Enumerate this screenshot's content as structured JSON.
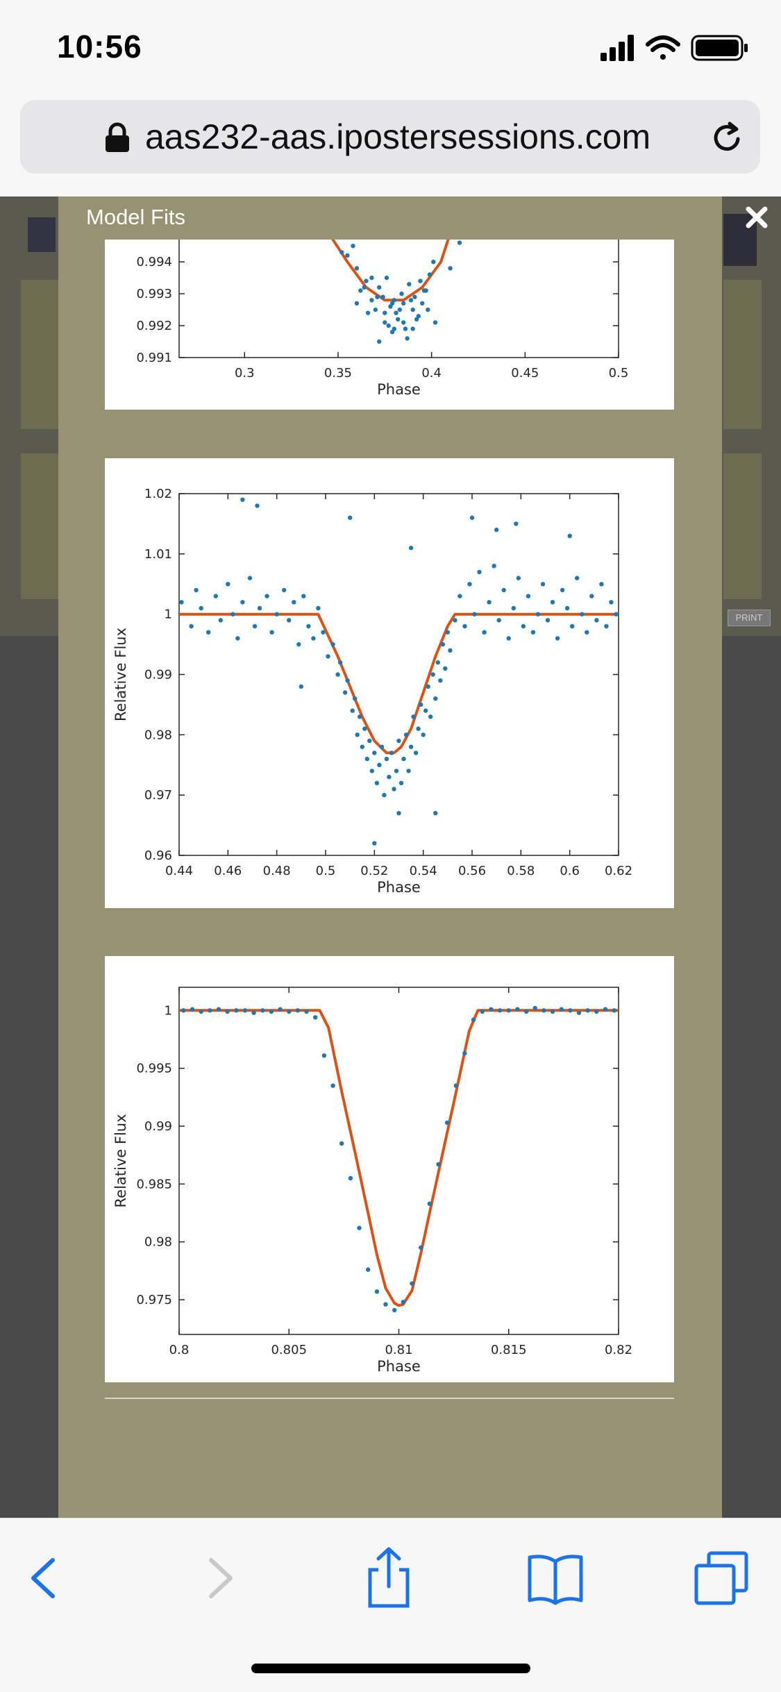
{
  "status_bar": {
    "time": "10:56"
  },
  "browser": {
    "url": "aas232-aas.ipostersessions.com"
  },
  "modal": {
    "title": "Model Fits"
  },
  "icons": {
    "signal": "signal-icon",
    "wifi": "wifi-icon",
    "battery": "battery-icon",
    "lock": "lock-icon",
    "reload": "reload-icon",
    "close": "close-icon",
    "back": "back-icon",
    "forward": "forward-icon",
    "share": "share-icon",
    "bookmarks": "bookmarks-icon",
    "tabs": "tabs-icon"
  },
  "colors": {
    "points": "#1f77b4",
    "model": "#d95319",
    "modal_bg": "#979274"
  },
  "chart_data": [
    {
      "type": "scatter",
      "xlabel": "Phase",
      "ylabel": "",
      "xlim": [
        0.265,
        0.5
      ],
      "ylim": [
        0.991,
        0.9947
      ],
      "xticks": [
        0.3,
        0.35,
        0.4,
        0.45,
        0.5
      ],
      "xtick_labels": [
        "0.3",
        "0.35",
        "0.4",
        "0.45",
        "0.5"
      ],
      "yticks": [
        0.991,
        0.992,
        0.993,
        0.994
      ],
      "ytick_labels": [
        "0.991",
        "0.992",
        "0.993",
        "0.994"
      ],
      "series": [
        {
          "kind": "points",
          "x": [
            0.355,
            0.36,
            0.362,
            0.365,
            0.368,
            0.37,
            0.372,
            0.374,
            0.375,
            0.376,
            0.378,
            0.379,
            0.38,
            0.381,
            0.382,
            0.384,
            0.385,
            0.386,
            0.388,
            0.39,
            0.391,
            0.392,
            0.394,
            0.395,
            0.397,
            0.399,
            0.401,
            0.36,
            0.366,
            0.371,
            0.377,
            0.383,
            0.389,
            0.393,
            0.398,
            0.372,
            0.38,
            0.387,
            0.364,
            0.375,
            0.385,
            0.396,
            0.368,
            0.379,
            0.39,
            0.358,
            0.402,
            0.415,
            0.352,
            0.41
          ],
          "y": [
            0.9942,
            0.9938,
            0.9931,
            0.9934,
            0.9928,
            0.9925,
            0.9932,
            0.9929,
            0.9921,
            0.9935,
            0.9926,
            0.9918,
            0.9928,
            0.9924,
            0.9922,
            0.993,
            0.9927,
            0.9919,
            0.9933,
            0.9925,
            0.9929,
            0.9922,
            0.9934,
            0.9927,
            0.9931,
            0.9936,
            0.994,
            0.9927,
            0.9924,
            0.9929,
            0.992,
            0.9925,
            0.9928,
            0.9923,
            0.9925,
            0.9915,
            0.9919,
            0.9916,
            0.9932,
            0.9924,
            0.9921,
            0.9931,
            0.9935,
            0.9927,
            0.9919,
            0.9945,
            0.9921,
            0.9946,
            0.9943,
            0.9938
          ]
        },
        {
          "kind": "model",
          "x": [
            0.345,
            0.355,
            0.365,
            0.37,
            0.375,
            0.38,
            0.385,
            0.39,
            0.395,
            0.405,
            0.41
          ],
          "y": [
            0.9949,
            0.994,
            0.9932,
            0.993,
            0.9928,
            0.9928,
            0.9928,
            0.993,
            0.9932,
            0.994,
            0.9949
          ]
        }
      ]
    },
    {
      "type": "scatter",
      "xlabel": "Phase",
      "ylabel": "Relative Flux",
      "xlim": [
        0.44,
        0.62
      ],
      "ylim": [
        0.96,
        1.02
      ],
      "xticks": [
        0.44,
        0.46,
        0.48,
        0.5,
        0.52,
        0.54,
        0.56,
        0.58,
        0.6,
        0.62
      ],
      "xtick_labels": [
        "0.44",
        "0.46",
        "0.48",
        "0.5",
        "0.52",
        "0.54",
        "0.56",
        "0.58",
        "0.6",
        "0.62"
      ],
      "yticks": [
        0.96,
        0.97,
        0.98,
        0.99,
        1,
        1.01,
        1.02
      ],
      "ytick_labels": [
        "0.96",
        "0.97",
        "0.98",
        "0.99",
        "1",
        "1.01",
        "1.02"
      ],
      "series": [
        {
          "kind": "points",
          "generated": "noise around model, sigma 0.004",
          "x": [
            0.441,
            0.445,
            0.447,
            0.449,
            0.452,
            0.455,
            0.457,
            0.46,
            0.462,
            0.464,
            0.466,
            0.469,
            0.471,
            0.473,
            0.476,
            0.478,
            0.48,
            0.483,
            0.485,
            0.487,
            0.489,
            0.491,
            0.493,
            0.495,
            0.497,
            0.499,
            0.501,
            0.503,
            0.505,
            0.506,
            0.508,
            0.509,
            0.511,
            0.512,
            0.513,
            0.514,
            0.515,
            0.516,
            0.517,
            0.518,
            0.519,
            0.52,
            0.521,
            0.522,
            0.523,
            0.524,
            0.525,
            0.526,
            0.527,
            0.528,
            0.529,
            0.53,
            0.531,
            0.532,
            0.533,
            0.534,
            0.535,
            0.536,
            0.537,
            0.538,
            0.539,
            0.54,
            0.541,
            0.542,
            0.543,
            0.544,
            0.545,
            0.546,
            0.547,
            0.548,
            0.549,
            0.55,
            0.551,
            0.553,
            0.555,
            0.557,
            0.559,
            0.561,
            0.563,
            0.565,
            0.567,
            0.569,
            0.571,
            0.573,
            0.575,
            0.577,
            0.579,
            0.581,
            0.583,
            0.585,
            0.587,
            0.589,
            0.591,
            0.593,
            0.595,
            0.597,
            0.599,
            0.601,
            0.603,
            0.605,
            0.607,
            0.609,
            0.611,
            0.613,
            0.615,
            0.617,
            0.619,
            0.466,
            0.472,
            0.53,
            0.52,
            0.545,
            0.56,
            0.578,
            0.6,
            0.51,
            0.535,
            0.49,
            0.57
          ],
          "y": [
            1.002,
            0.998,
            1.004,
            1.001,
            0.997,
            1.003,
            0.999,
            1.005,
            1.0,
            0.996,
            1.002,
            1.006,
            0.998,
            1.001,
            1.003,
            0.997,
            1.0,
            1.004,
            0.999,
            1.002,
            0.995,
            1.003,
            0.998,
            0.996,
            1.001,
            0.997,
            0.993,
            0.995,
            0.99,
            0.992,
            0.987,
            0.989,
            0.984,
            0.986,
            0.98,
            0.983,
            0.978,
            0.981,
            0.976,
            0.979,
            0.974,
            0.977,
            0.972,
            0.975,
            0.978,
            0.97,
            0.976,
            0.973,
            0.977,
            0.971,
            0.974,
            0.979,
            0.972,
            0.976,
            0.98,
            0.974,
            0.978,
            0.983,
            0.977,
            0.981,
            0.985,
            0.98,
            0.984,
            0.988,
            0.983,
            0.99,
            0.986,
            0.992,
            0.989,
            0.995,
            0.991,
            0.997,
            0.994,
            0.999,
            1.003,
            0.998,
            1.005,
            1.0,
            1.007,
            0.997,
            1.002,
            1.008,
            0.999,
            1.004,
            0.996,
            1.001,
            1.006,
            0.998,
            1.003,
            0.997,
            1.0,
            1.005,
            0.999,
            1.002,
            0.996,
            1.004,
            1.001,
            0.998,
            1.006,
            1.0,
            0.997,
            1.003,
            0.999,
            1.005,
            0.998,
            1.002,
            1.0,
            1.019,
            1.018,
            0.967,
            0.962,
            0.967,
            1.016,
            1.015,
            1.013,
            1.016,
            1.011,
            0.988,
            1.014
          ]
        },
        {
          "kind": "model",
          "x": [
            0.44,
            0.497,
            0.505,
            0.51,
            0.515,
            0.52,
            0.525,
            0.528,
            0.531,
            0.535,
            0.54,
            0.545,
            0.55,
            0.553,
            0.62
          ],
          "y": [
            1.0,
            1.0,
            0.993,
            0.988,
            0.983,
            0.979,
            0.977,
            0.977,
            0.978,
            0.981,
            0.987,
            0.993,
            0.998,
            1.0,
            1.0
          ]
        }
      ]
    },
    {
      "type": "scatter",
      "xlabel": "Phase",
      "ylabel": "Relative Flux",
      "xlim": [
        0.8,
        0.82
      ],
      "ylim": [
        0.972,
        1.002
      ],
      "xticks": [
        0.8,
        0.805,
        0.81,
        0.815,
        0.82
      ],
      "xtick_labels": [
        "0.8",
        "0.805",
        "0.81",
        "0.815",
        "0.82"
      ],
      "yticks": [
        0.975,
        0.98,
        0.985,
        0.99,
        0.995,
        1
      ],
      "ytick_labels": [
        "0.975",
        "0.98",
        "0.985",
        "0.99",
        "0.995",
        "1"
      ],
      "series": [
        {
          "kind": "points",
          "x": [
            0.8002,
            0.8006,
            0.801,
            0.8014,
            0.8018,
            0.8022,
            0.8026,
            0.803,
            0.8034,
            0.8038,
            0.8042,
            0.8046,
            0.805,
            0.8054,
            0.8058,
            0.8062,
            0.8066,
            0.807,
            0.8074,
            0.8078,
            0.8082,
            0.8086,
            0.809,
            0.8094,
            0.8098,
            0.8102,
            0.8106,
            0.811,
            0.8114,
            0.8118,
            0.8122,
            0.8126,
            0.813,
            0.8134,
            0.8138,
            0.8142,
            0.8146,
            0.815,
            0.8154,
            0.8158,
            0.8162,
            0.8166,
            0.817,
            0.8174,
            0.8178,
            0.8182,
            0.8186,
            0.819,
            0.8194,
            0.8198
          ],
          "y": [
            1.0,
            1.0001,
            0.9999,
            1.0,
            1.0001,
            0.9999,
            1.0,
            1.0,
            0.9998,
            1.0,
            0.9999,
            1.0001,
            0.9999,
            1.0,
            0.9999,
            0.9994,
            0.9961,
            0.9935,
            0.9885,
            0.9855,
            0.9812,
            0.9776,
            0.9757,
            0.9746,
            0.9741,
            0.9748,
            0.9764,
            0.9795,
            0.9833,
            0.9867,
            0.9903,
            0.9935,
            0.9963,
            0.9992,
            0.9999,
            1.0001,
            1.0,
            1.0,
            1.0001,
            0.9999,
            1.0002,
            1.0,
            0.9999,
            1.0001,
            1.0,
            0.9998,
            1.0,
            0.9999,
            1.0001,
            1.0
          ]
        },
        {
          "kind": "model",
          "x": [
            0.8,
            0.8064,
            0.8068,
            0.8074,
            0.808,
            0.8086,
            0.809,
            0.8094,
            0.8098,
            0.81,
            0.8102,
            0.8106,
            0.811,
            0.8114,
            0.812,
            0.8126,
            0.8132,
            0.8136,
            0.82
          ],
          "y": [
            1.0,
            1.0,
            0.9985,
            0.993,
            0.9878,
            0.9825,
            0.9789,
            0.976,
            0.9747,
            0.9745,
            0.9746,
            0.9758,
            0.979,
            0.9825,
            0.9877,
            0.9929,
            0.9982,
            1.0,
            1.0
          ]
        }
      ]
    }
  ]
}
